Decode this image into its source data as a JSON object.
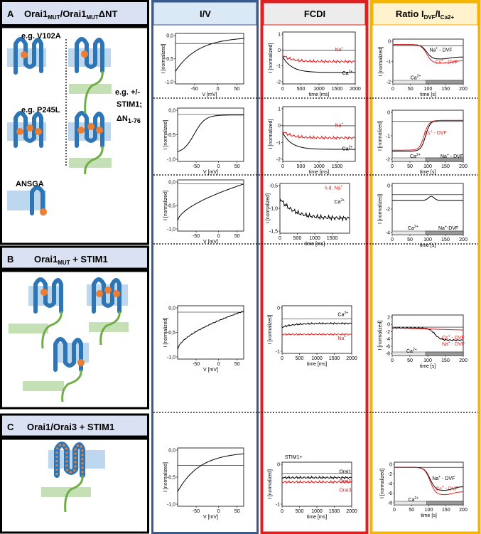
{
  "column_headers": {
    "iv": "I/V",
    "fcdi": "FCDI",
    "ratio": {
      "main": "Ratio I",
      "sub1": "DVF",
      "mid": "/I",
      "sub2": "Ca2+"
    }
  },
  "panel_a": {
    "letter": "A",
    "t1": "Orai1",
    "s1": "MUT",
    "t2": "/Orai1",
    "s2": "MUT",
    "t3": "ΔNT",
    "examples": [
      "e.g. V102A",
      "e.g. P245L",
      "ANSGA"
    ],
    "note": [
      "e.g. +/-",
      "STIM1;"
    ],
    "note_dn": "ΔN",
    "note_dn_sub": "1-76"
  },
  "panel_b": {
    "letter": "B",
    "t1": "Orai1",
    "s1": "MUT",
    "t2": " + STIM1"
  },
  "panel_c": {
    "letter": "C",
    "title": "Orai1/Orai3 + STIM1"
  },
  "plots": [
    {
      "ylabel": "I [normalized]",
      "xlabel": "V [mV]",
      "yticks": [
        "0,0",
        "-0,5",
        "-1,0"
      ],
      "xticks": [
        "-50",
        "0",
        "50"
      ]
    },
    {
      "ylabel": "I [normalized]",
      "xlabel": "time [ms]",
      "yticks": [
        "1",
        "0",
        "-1",
        "-2"
      ],
      "xticks": [
        "0",
        "500",
        "1000",
        "1500",
        "2000"
      ],
      "notes": [
        {
          "text": "Na",
          "sup": "+",
          "color": "#e02020"
        },
        {
          "text": "Ca",
          "sup": "2+",
          "color": "#000000"
        }
      ]
    },
    {
      "ylabel": "I [normalized]",
      "xlabel": "time [s]",
      "yticks": [
        "0",
        "-1",
        "-2"
      ],
      "xticks": [
        "0",
        "50",
        "100",
        "150",
        "200"
      ],
      "notes": [
        {
          "text": "Na",
          "sup": "+",
          "rest": " - DVF",
          "color": "#000000"
        },
        {
          "text": "Cs",
          "sup": "+",
          "rest": " - DVF",
          "color": "#e02020"
        },
        {
          "text": "Ca",
          "sup": "2+",
          "color": "#000000"
        }
      ]
    },
    {
      "ylabel": "I [normalized]",
      "xlabel": "V [mV]",
      "yticks": [
        "0,0",
        "-0,5",
        "-1,0"
      ],
      "xticks": [
        "-50",
        "0",
        "50"
      ]
    },
    {
      "ylabel": "I [normalized]",
      "xlabel": "time [ms]",
      "yticks": [
        "1",
        "0",
        "-1",
        "-2"
      ],
      "xticks": [
        "0",
        "500",
        "1000",
        "1500"
      ],
      "notes": [
        {
          "text": "Na",
          "sup": "+",
          "color": "#e02020"
        },
        {
          "text": "Ca",
          "sup": "2+",
          "color": "#000000"
        }
      ]
    },
    {
      "ylabel": "I [normalized]",
      "xlabel": "time [s]",
      "yticks": [
        "0",
        "-1",
        "-2"
      ],
      "xticks": [
        "0",
        "50",
        "100",
        "150",
        "200"
      ],
      "notes": [
        {
          "text": "Cs",
          "sup": "+",
          "rest": " - DVF",
          "color": "#e02020"
        },
        {
          "text": "Ca",
          "sup": "2+",
          "color": "#000000"
        },
        {
          "text": "Na",
          "sup": "+",
          "rest": " - DVF",
          "color": "#000000"
        }
      ]
    },
    {
      "ylabel": "I [normalized]",
      "xlabel": "V [mV]",
      "yticks": [
        "0,0",
        "-0,5",
        "-1,0"
      ],
      "xticks": [
        "-50",
        "0",
        "50"
      ]
    },
    {
      "ylabel": "I [normalized]",
      "xlabel": "time [ms]",
      "yticks": [
        "-0,5",
        "-1,0",
        "-1,5"
      ],
      "xticks": [
        "0",
        "500",
        "1000",
        "1500"
      ],
      "notes": [
        {
          "text": "n.d. Na",
          "sup": "+",
          "color": "#e02020"
        },
        {
          "text": "Ca",
          "sup": "2+",
          "color": "#000000"
        }
      ]
    },
    {
      "ylabel": "I [normalized]",
      "xlabel": "time [s]",
      "yticks": [
        "0",
        "-2",
        "-4"
      ],
      "xticks": [
        "0",
        "50",
        "100",
        "150",
        "200"
      ],
      "notes": [
        {
          "text": "Ca",
          "sup": "2+",
          "color": "#000000"
        },
        {
          "text": "Na",
          "sup": "+",
          "rest": "-DVF",
          "color": "#000000"
        }
      ]
    },
    {
      "ylabel": "I [normalized]",
      "xlabel": "V [mV]",
      "yticks": [
        "0,0",
        "-0,5",
        "-1,0"
      ],
      "xticks": [
        "-50",
        "0",
        "50"
      ]
    },
    {
      "ylabel": "I [normalized]",
      "xlabel": "time [ms]",
      "yticks": [
        "0",
        "-1"
      ],
      "xticks": [
        "0",
        "500",
        "1000",
        "1500",
        "2000"
      ],
      "notes": [
        {
          "text": "Ca",
          "sup": "2+",
          "color": "#000000"
        },
        {
          "text": "Na",
          "sup": "+",
          "color": "#e02020"
        }
      ]
    },
    {
      "ylabel": "I [normalized]",
      "xlabel": "time [s]",
      "yticks": [
        "2",
        "0",
        "-2",
        "-4",
        "-6",
        "-8"
      ],
      "xticks": [
        "0",
        "50",
        "100",
        "150",
        "200"
      ],
      "notes": [
        {
          "text": "Cs",
          "sup": "+",
          "rest": " - DVF",
          "color": "#e02020"
        },
        {
          "text": "Na",
          "sup": "+",
          "rest": " - DVF",
          "color": "#e02020"
        },
        {
          "text": "Ca",
          "sup": "2+",
          "color": "#000000"
        }
      ]
    },
    {
      "ylabel": "I [normalized]",
      "xlabel": "V [mV]",
      "yticks": [
        "0,0",
        "-0,5",
        "-1,0"
      ],
      "xticks": [
        "-50",
        "0",
        "50"
      ]
    },
    {
      "ylabel": "I [normalized]",
      "xlabel": "time [ms]",
      "yticks": [
        "0",
        "-1"
      ],
      "xticks": [
        "0",
        "500",
        "1000",
        "1500",
        "2000"
      ],
      "notes": [
        {
          "text": "STIM1+",
          "color": "#000000"
        },
        {
          "text": "Orai1",
          "color": "#000000"
        },
        {
          "text": "Orai1-",
          "color": "#e02020"
        },
        {
          "text": "Orai3",
          "color": "#e02020"
        }
      ]
    },
    {
      "ylabel": "I [normalized]",
      "xlabel": "time [s]",
      "yticks": [
        "0",
        "-2",
        "-4",
        "-6",
        "-8"
      ],
      "xticks": [
        "0",
        "50",
        "100",
        "150",
        "200"
      ],
      "notes": [
        {
          "text": "Na",
          "sup": "+",
          "rest": " - DVF",
          "color": "#000000"
        },
        {
          "text": "Cs",
          "sup": "+",
          "rest": " - DVF",
          "color": "#e02020"
        },
        {
          "text": "Ca",
          "sup": "2+",
          "color": "#000000"
        }
      ]
    }
  ]
}
